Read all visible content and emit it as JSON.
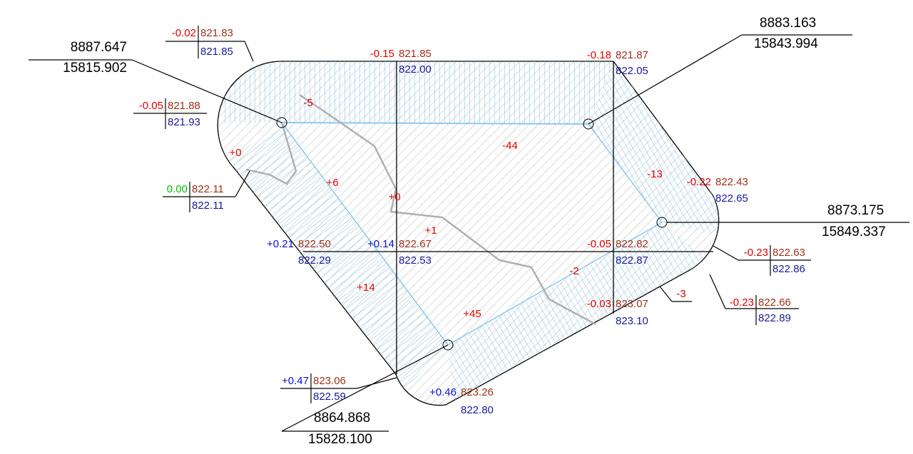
{
  "coordinates": [
    {
      "x": "8887.647",
      "y": "15815.902"
    },
    {
      "x": "8883.163",
      "y": "15843.994"
    },
    {
      "x": "8873.175",
      "y": "15849.337"
    },
    {
      "x": "8864.868",
      "y": "15828.100"
    }
  ],
  "elevations": [
    {
      "difference": "-0.02",
      "design": "821.83",
      "existing": "821.85"
    },
    {
      "difference": "-0.15",
      "design": "821.85",
      "existing": "822.00"
    },
    {
      "difference": "-0.18",
      "design": "821.87",
      "existing": "822.05"
    },
    {
      "difference": "-0.05",
      "design": "821.88",
      "existing": "821.93"
    },
    {
      "difference": "0.00",
      "design": "822.11",
      "existing": "822.11"
    },
    {
      "difference": "-0.22",
      "design": "822.43",
      "existing": "822.65"
    },
    {
      "difference": "+0.21",
      "design": "822.50",
      "existing": "822.29"
    },
    {
      "difference": "+0.14",
      "design": "822.67",
      "existing": "822.53"
    },
    {
      "difference": "-0.05",
      "design": "822.82",
      "existing": "822.87"
    },
    {
      "difference": "-0.23",
      "design": "822.63",
      "existing": "822.86"
    },
    {
      "difference": "-0.23",
      "design": "822.66",
      "existing": "822.89"
    },
    {
      "difference": "-0.03",
      "design": "823.07",
      "existing": "823.10"
    },
    {
      "difference": "+0.47",
      "design": "823.06",
      "existing": "822.59"
    },
    {
      "difference": "+0.46",
      "design": "823.26",
      "existing": "822.80"
    }
  ],
  "volumes": [
    "-5",
    "-44",
    "-13",
    "+0",
    "+6",
    "+0",
    "+1",
    "+14",
    "+45",
    "-2",
    "-3"
  ]
}
